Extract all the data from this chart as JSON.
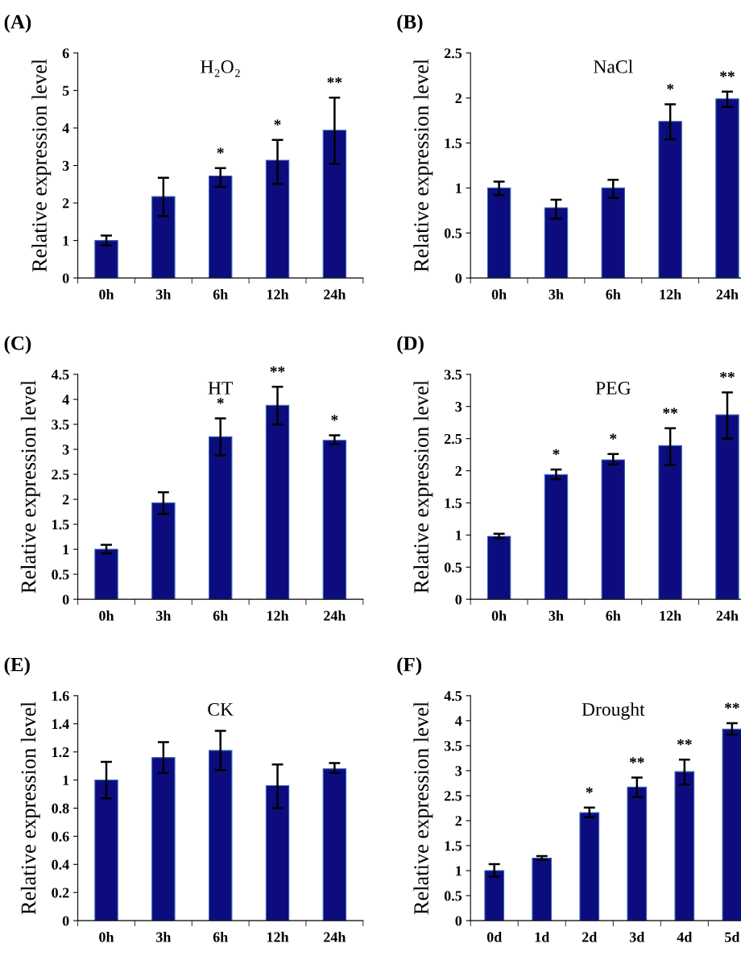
{
  "chart_data": [
    {
      "type": "bar",
      "title": "H₂O₂",
      "ylabel": "Relative expression level",
      "categories": [
        "0h",
        "3h",
        "6h",
        "12h",
        "24h"
      ],
      "values": [
        1.0,
        2.17,
        2.72,
        3.14,
        3.94
      ],
      "errors": [
        [
          0.87,
          1.13
        ],
        [
          1.65,
          2.67
        ],
        [
          2.43,
          2.93
        ],
        [
          2.51,
          3.68
        ],
        [
          3.04,
          4.81
        ]
      ],
      "color": "#0c0c7e",
      "ylim": [
        0,
        6
      ],
      "yticks": [
        0,
        1,
        2,
        3,
        4,
        5,
        6
      ],
      "grid": false,
      "value_labels": [
        null,
        null,
        "*",
        "*",
        "**"
      ],
      "annotations": [
        "(A)"
      ]
    },
    {
      "type": "bar",
      "title": "NaCl",
      "ylabel": "Relative expression level",
      "categories": [
        "0h",
        "3h",
        "6h",
        "12h",
        "24h"
      ],
      "values": [
        1.0,
        0.78,
        1.0,
        1.74,
        1.99
      ],
      "errors": [
        [
          0.92,
          1.07
        ],
        [
          0.66,
          0.87
        ],
        [
          0.89,
          1.09
        ],
        [
          1.54,
          1.93
        ],
        [
          1.9,
          2.07
        ]
      ],
      "color": "#0c0c7e",
      "ylim": [
        0,
        2.5
      ],
      "yticks": [
        0,
        0.5,
        1,
        1.5,
        2,
        2.5
      ],
      "grid": false,
      "value_labels": [
        null,
        null,
        null,
        "*",
        "**"
      ],
      "annotations": [
        "(B)"
      ]
    },
    {
      "type": "bar",
      "title": "HT",
      "ylabel": "Relative expression level",
      "categories": [
        "0h",
        "3h",
        "6h",
        "12h",
        "24h"
      ],
      "values": [
        1.0,
        1.93,
        3.25,
        3.88,
        3.18
      ],
      "errors": [
        [
          0.92,
          1.09
        ],
        [
          1.71,
          2.14
        ],
        [
          2.88,
          3.62
        ],
        [
          3.5,
          4.25
        ],
        [
          3.1,
          3.28
        ]
      ],
      "color": "#0c0c7e",
      "ylim": [
        0,
        4.5
      ],
      "yticks": [
        0,
        0.5,
        1,
        1.5,
        2,
        2.5,
        3,
        3.5,
        4,
        4.5
      ],
      "grid": false,
      "value_labels": [
        null,
        null,
        "*",
        "**",
        "*"
      ],
      "annotations": [
        "(C)"
      ]
    },
    {
      "type": "bar",
      "title": "PEG",
      "ylabel": "Relative expression level",
      "categories": [
        "0h",
        "3h",
        "6h",
        "12h",
        "24h"
      ],
      "values": [
        0.98,
        1.94,
        2.17,
        2.39,
        2.87
      ],
      "errors": [
        [
          0.95,
          1.02
        ],
        [
          1.87,
          2.02
        ],
        [
          2.1,
          2.26
        ],
        [
          2.09,
          2.66
        ],
        [
          2.5,
          3.22
        ]
      ],
      "color": "#0c0c7e",
      "ylim": [
        0,
        3.5
      ],
      "yticks": [
        0,
        0.5,
        1,
        1.5,
        2,
        2.5,
        3,
        3.5
      ],
      "grid": false,
      "value_labels": [
        null,
        "*",
        "*",
        "**",
        "**"
      ],
      "annotations": [
        "(D)"
      ]
    },
    {
      "type": "bar",
      "title": "CK",
      "ylabel": "Relative expression level",
      "categories": [
        "0h",
        "3h",
        "6h",
        "12h",
        "24h"
      ],
      "values": [
        1.0,
        1.16,
        1.21,
        0.96,
        1.08
      ],
      "errors": [
        [
          0.87,
          1.13
        ],
        [
          1.05,
          1.27
        ],
        [
          1.07,
          1.35
        ],
        [
          0.8,
          1.11
        ],
        [
          1.05,
          1.12
        ]
      ],
      "color": "#0c0c7e",
      "ylim": [
        0,
        1.6
      ],
      "yticks": [
        0,
        0.2,
        0.4,
        0.6,
        0.8,
        1,
        1.2,
        1.4,
        1.6
      ],
      "grid": false,
      "annotations": [
        "(E)"
      ]
    },
    {
      "type": "bar",
      "title": "Drought",
      "ylabel": "Relative expression level",
      "categories": [
        "0d",
        "1d",
        "2d",
        "3d",
        "4d",
        "5d"
      ],
      "values": [
        1.0,
        1.25,
        2.16,
        2.67,
        2.98,
        3.83
      ],
      "errors": [
        [
          0.88,
          1.13
        ],
        [
          1.22,
          1.29
        ],
        [
          2.07,
          2.26
        ],
        [
          2.47,
          2.86
        ],
        [
          2.72,
          3.22
        ],
        [
          3.72,
          3.95
        ]
      ],
      "color": "#0c0c7e",
      "ylim": [
        0,
        4.5
      ],
      "yticks": [
        0,
        0.5,
        1,
        1.5,
        2,
        2.5,
        3,
        3.5,
        4,
        4.5
      ],
      "grid": false,
      "value_labels": [
        null,
        null,
        "*",
        "**",
        "**",
        "**"
      ],
      "annotations": [
        "(F)"
      ]
    }
  ]
}
